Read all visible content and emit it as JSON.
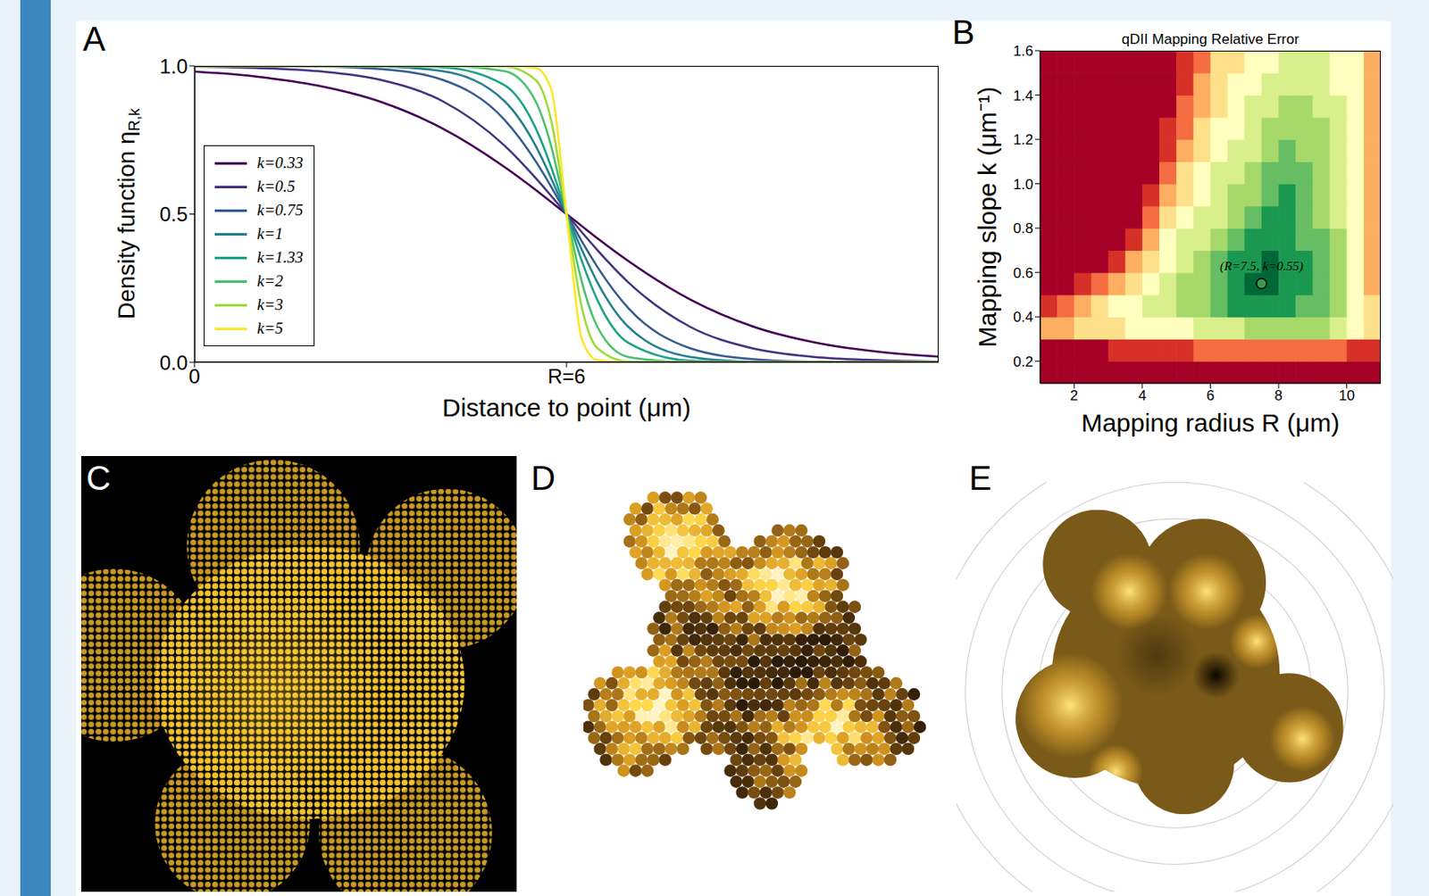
{
  "chart_data": [
    {
      "panel": "A",
      "type": "line",
      "x_label": "Distance to point (μm)",
      "y_label": "Density function ηR,k",
      "legend": "left",
      "x": [
        0,
        1,
        2,
        3,
        4,
        5,
        5.5,
        5.75,
        6,
        6.25,
        6.5,
        7,
        8,
        9,
        10,
        11,
        12
      ],
      "series": [
        {
          "name": "k=0.33",
          "color": "#440154",
          "values": [
            0.981,
            0.964,
            0.933,
            0.879,
            0.789,
            0.659,
            0.582,
            0.541,
            0.5,
            0.459,
            0.418,
            0.341,
            0.211,
            0.121,
            0.067,
            0.036,
            0.019
          ]
        },
        {
          "name": "k=0.5",
          "color": "#46327e",
          "values": [
            0.998,
            0.993,
            0.982,
            0.953,
            0.881,
            0.731,
            0.622,
            0.562,
            0.5,
            0.438,
            0.378,
            0.269,
            0.119,
            0.047,
            0.018,
            0.007,
            0.002
          ]
        },
        {
          "name": "k=0.75",
          "color": "#365c8d",
          "values": [
            1,
            0.999,
            0.998,
            0.989,
            0.953,
            0.818,
            0.679,
            0.593,
            0.5,
            0.407,
            0.321,
            0.182,
            0.047,
            0.011,
            0.002,
            0.001,
            0
          ]
        },
        {
          "name": "k=1",
          "color": "#277f8e",
          "values": [
            1,
            1,
            1,
            0.998,
            0.982,
            0.881,
            0.731,
            0.622,
            0.5,
            0.378,
            0.269,
            0.119,
            0.018,
            0.002,
            0,
            0,
            0
          ]
        },
        {
          "name": "k=1.33",
          "color": "#1fa187",
          "values": [
            1,
            1,
            1,
            1,
            0.995,
            0.935,
            0.791,
            0.66,
            0.5,
            0.34,
            0.209,
            0.065,
            0.005,
            0,
            0,
            0,
            0
          ]
        },
        {
          "name": "k=2",
          "color": "#4ac16d",
          "values": [
            1,
            1,
            1,
            1,
            1,
            0.982,
            0.881,
            0.731,
            0.5,
            0.269,
            0.119,
            0.018,
            0,
            0,
            0,
            0,
            0
          ]
        },
        {
          "name": "k=3",
          "color": "#a0da39",
          "values": [
            1,
            1,
            1,
            1,
            1,
            0.998,
            0.953,
            0.818,
            0.5,
            0.182,
            0.047,
            0.002,
            0,
            0,
            0,
            0,
            0
          ]
        },
        {
          "name": "k=5",
          "color": "#fde725",
          "values": [
            1,
            1,
            1,
            1,
            1,
            1,
            0.993,
            0.924,
            0.5,
            0.076,
            0.007,
            0,
            0,
            0,
            0,
            0,
            0
          ]
        }
      ],
      "xlim": [
        0,
        12
      ],
      "xticks": [
        0,
        {
          "value": 6,
          "label": "R=6"
        }
      ],
      "ylim": [
        0,
        1
      ],
      "yticks": [
        {
          "value": 0,
          "label": "0.0"
        },
        {
          "value": 0.5,
          "label": "0.5"
        },
        {
          "value": 1,
          "label": "1.0"
        }
      ]
    },
    {
      "panel": "B",
      "type": "heatmap",
      "title": "qDII Mapping Relative Error",
      "x_label": "Mapping radius R (μm)",
      "y_label": "Mapping slope k (μm⁻¹)",
      "xlim": [
        1,
        11
      ],
      "xticks": [
        2,
        4,
        6,
        8,
        10
      ],
      "ylim": [
        0.1,
        1.6
      ],
      "yticks": [
        0.2,
        0.4,
        0.6,
        0.8,
        {
          "value": 1,
          "label": "1.0"
        },
        1.2,
        1.4,
        1.6
      ],
      "x_edges": [
        1,
        1.5,
        2,
        2.5,
        3,
        3.5,
        4,
        4.5,
        5,
        5.5,
        6,
        6.5,
        7,
        7.5,
        8,
        8.5,
        9,
        9.5,
        10,
        10.5,
        11
      ],
      "y_edges": [
        0.1,
        0.2,
        0.3,
        0.4,
        0.5,
        0.6,
        0.7,
        0.8,
        0.9,
        1.0,
        1.1,
        1.2,
        1.3,
        1.4,
        1.5,
        1.6
      ],
      "cells": [
        [
          10,
          10,
          10,
          10,
          10,
          10,
          10,
          10,
          10,
          10,
          10,
          10,
          10,
          10,
          10,
          10,
          10,
          10,
          10,
          10
        ],
        [
          10,
          10,
          10,
          10,
          9,
          9,
          9,
          9,
          9,
          8,
          8,
          8,
          8,
          8,
          8,
          8,
          8,
          8,
          9,
          9
        ],
        [
          7,
          7,
          6,
          6,
          6,
          5,
          5,
          5,
          5,
          4,
          4,
          4,
          3,
          3,
          3,
          3,
          3,
          4,
          5,
          6
        ],
        [
          9,
          8,
          7,
          6,
          5,
          5,
          4,
          4,
          3,
          3,
          2,
          1,
          1,
          1,
          1,
          2,
          2,
          3,
          5,
          6
        ],
        [
          10,
          10,
          9,
          8,
          7,
          6,
          5,
          4,
          3,
          3,
          2,
          1,
          0,
          0,
          1,
          1,
          2,
          3,
          5,
          7
        ],
        [
          10,
          10,
          10,
          10,
          9,
          7,
          6,
          5,
          4,
          3,
          2,
          1,
          1,
          0,
          1,
          1,
          2,
          3,
          5,
          7
        ],
        [
          10,
          10,
          10,
          10,
          10,
          9,
          7,
          5,
          4,
          4,
          3,
          2,
          1,
          1,
          1,
          2,
          2,
          3,
          5,
          7
        ],
        [
          10,
          10,
          10,
          10,
          10,
          10,
          8,
          6,
          5,
          4,
          4,
          3,
          2,
          1,
          1,
          2,
          3,
          4,
          5,
          7
        ],
        [
          10,
          10,
          10,
          10,
          10,
          10,
          9,
          7,
          6,
          5,
          4,
          3,
          3,
          2,
          1,
          2,
          3,
          4,
          5,
          7
        ],
        [
          10,
          10,
          10,
          10,
          10,
          10,
          10,
          8,
          6,
          5,
          4,
          4,
          3,
          2,
          2,
          2,
          3,
          4,
          5,
          7
        ],
        [
          10,
          10,
          10,
          10,
          10,
          10,
          10,
          9,
          7,
          6,
          5,
          4,
          4,
          3,
          2,
          3,
          3,
          4,
          5,
          7
        ],
        [
          10,
          10,
          10,
          10,
          10,
          10,
          10,
          9,
          8,
          6,
          5,
          5,
          4,
          3,
          3,
          3,
          3,
          4,
          5,
          7
        ],
        [
          10,
          10,
          10,
          10,
          10,
          10,
          10,
          10,
          8,
          7,
          6,
          5,
          4,
          4,
          3,
          3,
          4,
          4,
          5,
          7
        ],
        [
          10,
          10,
          10,
          10,
          10,
          10,
          10,
          10,
          9,
          7,
          6,
          5,
          5,
          4,
          4,
          4,
          4,
          5,
          5,
          7
        ],
        [
          10,
          10,
          10,
          10,
          10,
          10,
          10,
          10,
          9,
          8,
          6,
          6,
          5,
          5,
          4,
          4,
          4,
          5,
          5,
          7
        ]
      ],
      "annotation": {
        "text": "(R=7.5, k=0.55)",
        "x": 7.5,
        "y": 0.55
      }
    }
  ],
  "images": [
    {
      "panel": "C"
    },
    {
      "panel": "D"
    },
    {
      "panel": "E"
    }
  ]
}
